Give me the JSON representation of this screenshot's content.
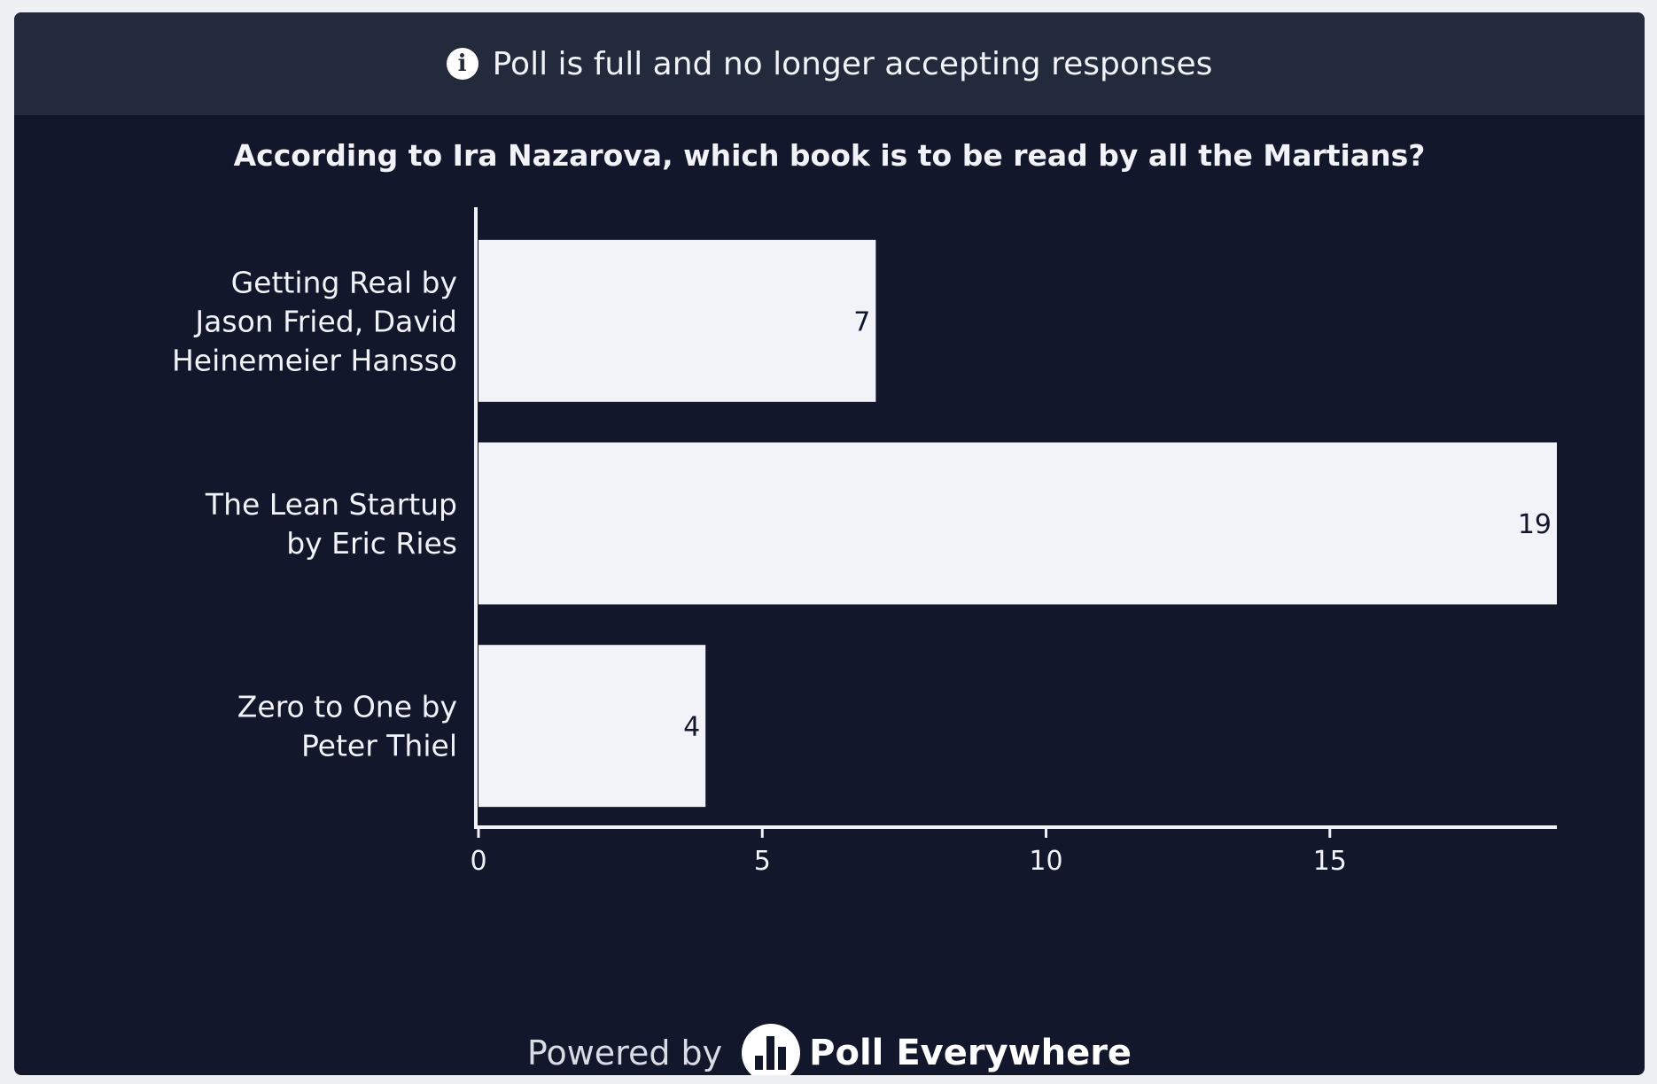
{
  "banner": {
    "icon": "info-icon",
    "message": "Poll is full and no longer accepting responses"
  },
  "question": "According to Ira Nazarova, which book is to be read by all the Martians?",
  "chart_data": {
    "type": "bar",
    "orientation": "horizontal",
    "categories": [
      [
        "Getting Real by",
        "Jason Fried, David",
        "Heinemeier Hansso"
      ],
      [
        "The Lean Startup",
        "by Eric Ries"
      ],
      [
        "Zero to One by",
        "Peter Thiel"
      ]
    ],
    "values": [
      7,
      19,
      4
    ],
    "xlim": [
      0,
      19
    ],
    "xticks": [
      "0",
      "5",
      "10",
      "15"
    ],
    "grid": false,
    "bar_color": "#f1f3f8",
    "background_color": "#12172b"
  },
  "footer": {
    "powered_label": "Powered by",
    "logo_icon": "poll-everywhere-logo-icon",
    "brand": "Poll Everywhere"
  }
}
